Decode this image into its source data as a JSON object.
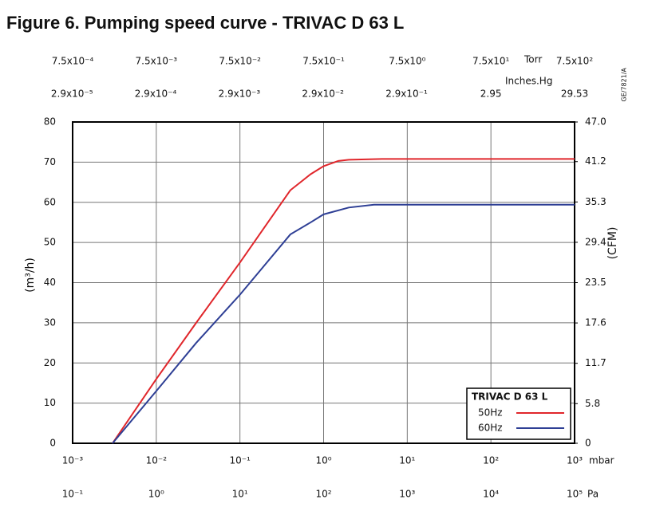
{
  "chart_data": {
    "type": "line",
    "title": "Figure 6.  Pumping speed curve - TRIVAC D 63 L",
    "annotation": "GE/7821/A",
    "xscale": "log",
    "xlabel": "mbar",
    "xlim": [
      0.001,
      1000
    ],
    "xticks": [
      {
        "value": 0.001,
        "label": "10⁻³"
      },
      {
        "value": 0.01,
        "label": "10⁻²"
      },
      {
        "value": 0.1,
        "label": "10⁻¹"
      },
      {
        "value": 1,
        "label": "10⁰"
      },
      {
        "value": 10,
        "label": "10¹"
      },
      {
        "value": 100,
        "label": "10²"
      },
      {
        "value": 1000,
        "label": "10³"
      }
    ],
    "x2label": "Pa",
    "x2lim": [
      0.1,
      100000
    ],
    "x2ticks": [
      {
        "value": 0.1,
        "label": "10⁻¹"
      },
      {
        "value": 1,
        "label": "10⁰"
      },
      {
        "value": 10,
        "label": "10¹"
      },
      {
        "value": 100,
        "label": "10²"
      },
      {
        "value": 1000,
        "label": "10³"
      },
      {
        "value": 10000,
        "label": "10⁴"
      },
      {
        "value": 100000,
        "label": "10⁵"
      }
    ],
    "x3label": "Torr",
    "x3lim": [
      0.00075,
      750
    ],
    "x3ticks": [
      {
        "value": 0.00075,
        "label": "7.5x10⁻⁴"
      },
      {
        "value": 0.0075,
        "label": "7.5x10⁻³"
      },
      {
        "value": 0.075,
        "label": "7.5x10⁻²"
      },
      {
        "value": 0.75,
        "label": "7.5x10⁻¹"
      },
      {
        "value": 7.5,
        "label": "7.5x10⁰"
      },
      {
        "value": 75,
        "label": "7.5x10¹"
      },
      {
        "value": 750,
        "label": "7.5x10²"
      }
    ],
    "x4label": "Inches.Hg",
    "x4lim": [
      2.95e-05,
      29.53
    ],
    "x4ticks": [
      {
        "value": 2.9e-05,
        "label": "2.9x10⁻⁵"
      },
      {
        "value": 0.00029,
        "label": "2.9x10⁻⁴"
      },
      {
        "value": 0.0029,
        "label": "2.9x10⁻³"
      },
      {
        "value": 0.029,
        "label": "2.9x10⁻²"
      },
      {
        "value": 0.29,
        "label": "2.9x10⁻¹"
      },
      2.95,
      29.53
    ],
    "ylabel": "(m³/h)",
    "ylim": [
      0,
      80
    ],
    "yticks": [
      0,
      10,
      20,
      30,
      40,
      50,
      60,
      70,
      80
    ],
    "y2label": "(CFM)",
    "y2lim": [
      0,
      47.0
    ],
    "y2ticks": [
      0,
      5.8,
      11.7,
      17.6,
      23.5,
      29.4,
      35.3,
      41.2,
      {
        "value": 47.0,
        "label": "47.0"
      }
    ],
    "grid": true,
    "legend_title": "TRIVAC D 63 L",
    "legend": "lower right",
    "series": [
      {
        "name": "50Hz",
        "color": "#e0262b",
        "x": [
          0.003,
          0.01,
          0.03,
          0.1,
          0.2,
          0.4,
          0.7,
          1,
          1.5,
          2,
          5,
          1000
        ],
        "values": [
          0,
          16,
          30,
          45,
          54,
          63,
          67,
          69,
          70.3,
          70.6,
          70.8,
          70.8
        ]
      },
      {
        "name": "60Hz",
        "color": "#2e3f95",
        "x": [
          0.003,
          0.01,
          0.03,
          0.1,
          0.2,
          0.4,
          0.7,
          1,
          2,
          4,
          10,
          1000
        ],
        "values": [
          0,
          13,
          25,
          37,
          44.5,
          52,
          55,
          57,
          58.7,
          59.4,
          59.4,
          59.4
        ]
      }
    ]
  }
}
